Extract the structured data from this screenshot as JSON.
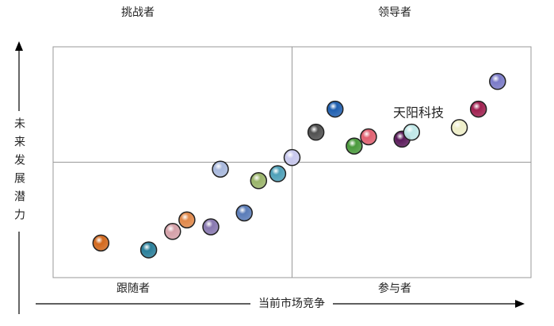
{
  "chart_data": {
    "type": "scatter",
    "quadrant_labels": {
      "top_left": "挑战者",
      "top_right": "领导者",
      "bottom_left": "跟随者",
      "bottom_right": "参与者"
    },
    "x_label": "当前市场竞争",
    "y_label": "未来发展潜力",
    "annotation": "天阳科技",
    "xlim": [
      0,
      100
    ],
    "ylim": [
      0,
      100
    ],
    "x": [
      10,
      20,
      25,
      28,
      33,
      35,
      40,
      43,
      47,
      50,
      55,
      59,
      63,
      66,
      73,
      75,
      85,
      89,
      93
    ],
    "values": [
      15,
      12,
      20,
      25,
      22,
      47,
      28,
      42,
      45,
      52,
      63,
      73,
      57,
      61,
      60,
      63,
      65,
      73,
      85
    ],
    "colors": [
      "#d2691e",
      "#2a7f9a",
      "#d4a0a8",
      "#e0884a",
      "#8878b0",
      "#a8b8dc",
      "#5a7cb8",
      "#9ab46a",
      "#4ea0b8",
      "#c8c8ee",
      "#505050",
      "#1f5fb0",
      "#4a9a3c",
      "#e06070",
      "#5a1a5a",
      "#bfe8e8",
      "#eeeec8",
      "#a02050",
      "#7b7bc8"
    ]
  }
}
